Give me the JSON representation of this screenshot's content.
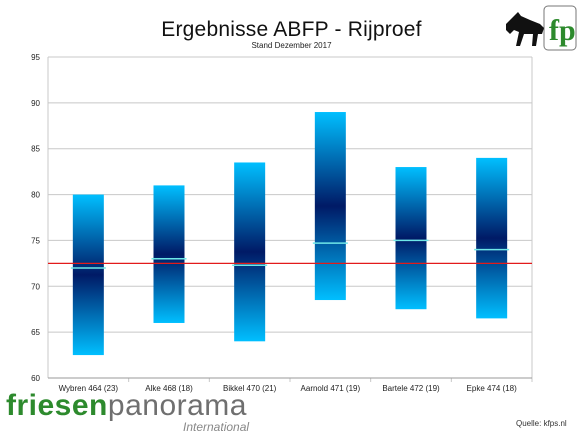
{
  "title": "Ergebnisse ABFP - Rijproef",
  "subtitle": "Stand Dezember 2017",
  "branding": {
    "logo_text": "fp",
    "brand_part1": "friesen",
    "brand_part2": "panorama",
    "brand_sub": "International"
  },
  "source": "Quelle: kfps.nl",
  "colors": {
    "bar_light": "#00BFFF",
    "bar_dark": "#001A66",
    "mean_line": "#E21B1B",
    "marker": "#6FE8E8",
    "brand_green": "#2D8A2D"
  },
  "chart_data": {
    "type": "bar",
    "subtype": "floating-range",
    "categories": [
      "Wybren 464 (23)",
      "Alke 468 (18)",
      "Bikkel 470 (21)",
      "Aarnold 471 (19)",
      "Bartele 472 (19)",
      "Epke 474 (18)"
    ],
    "series": [
      {
        "low": [
          62.5,
          66,
          64,
          68.5,
          67.5,
          66.5
        ],
        "high": [
          80,
          81,
          83.5,
          89,
          83,
          84
        ],
        "marker": [
          72,
          73,
          72.3,
          74.7,
          75,
          74
        ]
      }
    ],
    "reference_line": 72.5,
    "ylim": [
      60,
      95
    ],
    "yticks": [
      60,
      65,
      70,
      75,
      80,
      85,
      90,
      95
    ],
    "grid": true,
    "legend": "none"
  }
}
